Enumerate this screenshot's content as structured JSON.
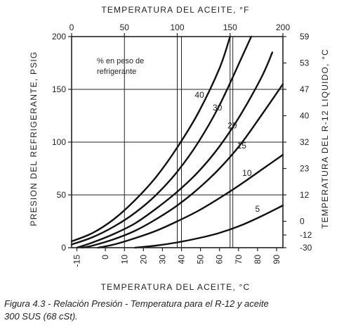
{
  "chart_data": {
    "type": "line",
    "title": "",
    "top_axis": {
      "label": "TEMPERATURA DEL ACEITE, °F",
      "min": 0,
      "max": 200,
      "ticks": [
        0,
        50,
        100,
        150,
        200
      ]
    },
    "bottom_axis": {
      "label": "TEMPERATURA DEL ACEITE, °C",
      "min": -17.8,
      "max": 93.3,
      "ticks": [
        -15,
        0,
        10,
        20,
        30,
        40,
        50,
        60,
        70,
        80,
        90
      ]
    },
    "left_axis": {
      "label": "PRESION DEL REFRIGERANTE, PSIG",
      "min": 0,
      "max": 200,
      "ticks": [
        0,
        50,
        100,
        150,
        200
      ]
    },
    "right_axis": {
      "label": "TEMPERATURA DEL R-12 LIQUIDO, °C",
      "ticks": [
        {
          "label": "59",
          "psig": 200
        },
        {
          "label": "53",
          "psig": 175
        },
        {
          "label": "47",
          "psig": 150
        },
        {
          "label": "40",
          "psig": 125
        },
        {
          "label": "32",
          "psig": 100
        },
        {
          "label": "23",
          "psig": 75
        },
        {
          "label": "12",
          "psig": 50
        },
        {
          "label": "0",
          "psig": 25
        },
        {
          "label": "-12",
          "psig": 12
        },
        {
          "label": "-30",
          "psig": 0
        }
      ]
    },
    "grid_x_f": [
      0,
      50,
      100,
      150,
      200
    ],
    "grid_x_c": [
      40,
      67
    ],
    "grid_y": [
      0,
      50,
      100,
      150,
      200
    ],
    "annotation": {
      "line1": "% en peso de",
      "line2": "refrigerante"
    },
    "series": [
      {
        "name": "40",
        "x": [
          0,
          20,
          40,
          60,
          80,
          100,
          120,
          140,
          150
        ],
        "y": [
          6,
          14,
          27,
          45,
          67,
          95,
          128,
          170,
          200
        ]
      },
      {
        "name": "30",
        "x": [
          0,
          20,
          40,
          60,
          80,
          100,
          120,
          140,
          160,
          170
        ],
        "y": [
          3,
          10,
          20,
          33,
          50,
          72,
          100,
          135,
          178,
          200
        ]
      },
      {
        "name": "20",
        "x": [
          5,
          20,
          40,
          60,
          80,
          100,
          120,
          140,
          160,
          180,
          190
        ],
        "y": [
          0,
          5,
          13,
          23,
          37,
          53,
          72,
          96,
          126,
          162,
          185
        ]
      },
      {
        "name": "15",
        "x": [
          10,
          20,
          40,
          60,
          80,
          100,
          120,
          140,
          160,
          180,
          200
        ],
        "y": [
          0,
          2,
          8,
          16,
          27,
          40,
          56,
          75,
          98,
          126,
          155
        ]
      },
      {
        "name": "10",
        "x": [
          25,
          40,
          60,
          80,
          100,
          120,
          140,
          160,
          180,
          200
        ],
        "y": [
          0,
          3,
          9,
          16,
          25,
          35,
          47,
          60,
          74,
          88
        ]
      },
      {
        "name": "5",
        "x": [
          60,
          80,
          100,
          120,
          140,
          160,
          180,
          200
        ],
        "y": [
          0,
          2,
          5,
          9,
          14,
          21,
          30,
          40
        ]
      }
    ],
    "series_labels": [
      {
        "text": "40",
        "x": 121,
        "y": 142
      },
      {
        "text": "30",
        "x": 138,
        "y": 130
      },
      {
        "text": "20",
        "x": 152,
        "y": 113
      },
      {
        "text": "15",
        "x": 161,
        "y": 94
      },
      {
        "text": "10",
        "x": 166,
        "y": 68
      },
      {
        "text": "5",
        "x": 176,
        "y": 34
      }
    ],
    "colors": {
      "line": "#111111",
      "grid": "#222222"
    }
  },
  "caption": {
    "line1": "Figura 4.3 - Relación Presión - Temperatura para el R-12 y aceite",
    "line2": "300 SUS (68 cSt)."
  }
}
